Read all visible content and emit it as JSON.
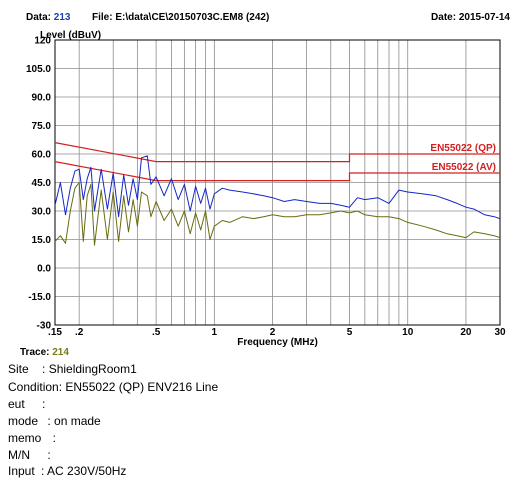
{
  "header": {
    "data_label": "Data:",
    "data_value": "213",
    "file_label": "File:",
    "file_value": "E:\\data\\CE\\20150703C.EM8  (242)",
    "date_label": "Date:",
    "date_value": "2015-07-14"
  },
  "trace": {
    "label": "Trace:",
    "value": "214"
  },
  "info": [
    {
      "key": "Site",
      "value": ": ShieldingRoom1"
    },
    {
      "key": "Condition:",
      "value": "EN55022 (QP) ENV216 Line"
    },
    {
      "key": "eut",
      "value": ":"
    },
    {
      "key": "mode",
      "value": ": on made"
    },
    {
      "key": "memo",
      "value": ":"
    },
    {
      "key": "M/N",
      "value": ":"
    },
    {
      "key": "Input",
      "value": ": AC 230V/50Hz"
    }
  ],
  "chart_data": {
    "type": "line",
    "ylabel": "Level (dBuV)",
    "xlabel": "Frequency (MHz)",
    "xscale": "log",
    "xlim": [
      0.15,
      30
    ],
    "ylim": [
      -30,
      120
    ],
    "x_ticks": [
      0.15,
      0.2,
      0.5,
      1,
      2,
      5,
      10,
      20,
      30
    ],
    "x_tick_labels": [
      ".15",
      ".2",
      ".5",
      "1",
      "2",
      "5",
      "10",
      "20",
      "30"
    ],
    "y_ticks": [
      120,
      105,
      90,
      75,
      60,
      45,
      30,
      15,
      0,
      -15,
      -30
    ],
    "y_tick_labels": [
      "120",
      "105.0",
      "90.0",
      "75.0",
      "60.0",
      "45.0",
      "30.0",
      "15.0",
      "0.0",
      "-15.0",
      "-30"
    ],
    "grid": true,
    "limits": [
      {
        "name": "EN55022 (QP)",
        "color": "#d42020",
        "points": [
          [
            0.15,
            66
          ],
          [
            0.5,
            56
          ],
          [
            5,
            56
          ],
          [
            5,
            60
          ],
          [
            30,
            60
          ]
        ]
      },
      {
        "name": "EN55022 (AV)",
        "color": "#d42020",
        "points": [
          [
            0.15,
            56
          ],
          [
            0.5,
            46
          ],
          [
            5,
            46
          ],
          [
            5,
            50
          ],
          [
            30,
            50
          ]
        ]
      }
    ],
    "series": [
      {
        "color": "#1428c8",
        "x": [
          0.15,
          0.16,
          0.17,
          0.18,
          0.19,
          0.2,
          0.21,
          0.22,
          0.23,
          0.24,
          0.26,
          0.28,
          0.3,
          0.32,
          0.34,
          0.36,
          0.38,
          0.4,
          0.42,
          0.45,
          0.47,
          0.5,
          0.55,
          0.6,
          0.65,
          0.7,
          0.75,
          0.8,
          0.85,
          0.9,
          0.95,
          1.0,
          1.1,
          1.2,
          1.4,
          1.6,
          1.8,
          2.0,
          2.3,
          2.6,
          3.0,
          3.5,
          4.0,
          4.5,
          5.0,
          5.5,
          6.0,
          7.0,
          8.0,
          9.0,
          10,
          12,
          14,
          16,
          18,
          20,
          22,
          25,
          28,
          30
        ],
        "y": [
          33,
          45,
          28,
          42,
          51,
          52,
          36,
          47,
          53,
          30,
          52,
          31,
          50,
          27,
          49,
          33,
          47,
          36,
          58,
          59,
          44,
          48,
          38,
          47,
          36,
          44,
          30,
          43,
          34,
          42,
          31,
          39,
          42,
          41,
          40,
          39,
          38,
          37,
          35,
          36,
          35,
          34,
          34,
          33,
          32,
          37,
          36,
          37,
          34,
          41,
          40,
          39,
          38,
          36,
          34,
          32,
          31,
          28,
          27,
          26
        ]
      },
      {
        "color": "#6b6b10",
        "x": [
          0.15,
          0.16,
          0.17,
          0.18,
          0.19,
          0.2,
          0.21,
          0.22,
          0.23,
          0.24,
          0.26,
          0.28,
          0.3,
          0.32,
          0.34,
          0.36,
          0.38,
          0.4,
          0.42,
          0.45,
          0.47,
          0.5,
          0.55,
          0.6,
          0.65,
          0.7,
          0.75,
          0.8,
          0.85,
          0.9,
          0.95,
          1.0,
          1.1,
          1.2,
          1.4,
          1.6,
          1.8,
          2.0,
          2.3,
          2.6,
          3.0,
          3.5,
          4.0,
          4.5,
          5.0,
          5.5,
          6.0,
          7.0,
          8.0,
          9.0,
          10,
          12,
          14,
          16,
          18,
          20,
          22,
          25,
          28,
          30
        ],
        "y": [
          14,
          17,
          13,
          30,
          42,
          45,
          14,
          38,
          44,
          12,
          41,
          15,
          40,
          14,
          38,
          19,
          36,
          22,
          40,
          38,
          27,
          35,
          25,
          31,
          22,
          30,
          18,
          29,
          20,
          30,
          15,
          22,
          25,
          24,
          27,
          26,
          27,
          28,
          27,
          27,
          28,
          28,
          29,
          30,
          29,
          30,
          28,
          27,
          27,
          26,
          24,
          22,
          20,
          18,
          17,
          16,
          19,
          18,
          17,
          16
        ]
      }
    ]
  }
}
